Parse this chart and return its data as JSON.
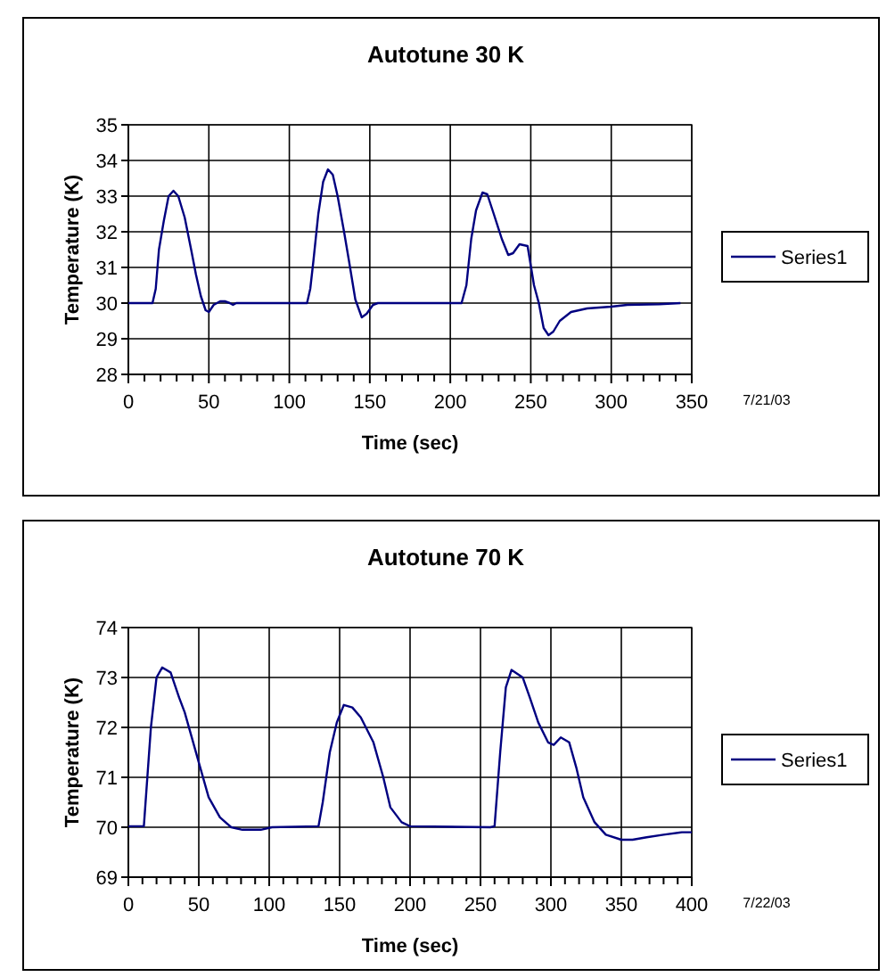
{
  "chart_data": [
    {
      "type": "line",
      "title": "Autotune 30 K",
      "xlabel": "Time (sec)",
      "ylabel": "Temperature (K)",
      "annotations": [
        "7/21/03"
      ],
      "legend": "right",
      "grid": true,
      "line_style": "solid",
      "marker": "none",
      "xlim": [
        0,
        350
      ],
      "ylim": [
        28,
        35
      ],
      "xticks": [
        0,
        {
          "value": 10,
          "label": null
        },
        {
          "value": 20,
          "label": null
        },
        {
          "value": 30,
          "label": null
        },
        {
          "value": 40,
          "label": null
        },
        50,
        {
          "value": 60,
          "label": null
        },
        {
          "value": 70,
          "label": null
        },
        {
          "value": 80,
          "label": null
        },
        {
          "value": 90,
          "label": null
        },
        100,
        {
          "value": 110,
          "label": null
        },
        {
          "value": 120,
          "label": null
        },
        {
          "value": 130,
          "label": null
        },
        {
          "value": 140,
          "label": null
        },
        150,
        {
          "value": 160,
          "label": null
        },
        {
          "value": 170,
          "label": null
        },
        {
          "value": 180,
          "label": null
        },
        {
          "value": 190,
          "label": null
        },
        200,
        {
          "value": 210,
          "label": null
        },
        {
          "value": 220,
          "label": null
        },
        {
          "value": 230,
          "label": null
        },
        {
          "value": 240,
          "label": null
        },
        250,
        {
          "value": 260,
          "label": null
        },
        {
          "value": 270,
          "label": null
        },
        {
          "value": 280,
          "label": null
        },
        {
          "value": 290,
          "label": null
        },
        300,
        {
          "value": 310,
          "label": null
        },
        {
          "value": 320,
          "label": null
        },
        {
          "value": 330,
          "label": null
        },
        {
          "value": 340,
          "label": null
        },
        350
      ],
      "yticks": [
        28,
        29,
        30,
        31,
        32,
        33,
        34,
        35
      ],
      "series": [
        {
          "name": "Series1",
          "color": "#000080",
          "x": [
            0,
            15,
            17,
            19,
            22,
            25,
            28,
            31,
            35,
            39,
            42,
            45,
            48,
            50,
            53,
            57,
            60,
            63,
            65,
            67,
            100,
            111,
            113,
            115,
            118,
            121,
            124,
            127,
            130,
            134,
            137,
            141,
            145,
            148,
            152,
            155,
            207,
            210,
            213,
            216,
            220,
            223,
            227,
            232,
            236,
            239,
            243,
            248,
            252,
            255,
            258,
            261,
            264,
            268,
            275,
            285,
            300,
            310,
            330,
            343
          ],
          "values": [
            30,
            30,
            30.4,
            31.5,
            32.3,
            33,
            33.15,
            33,
            32.4,
            31.5,
            30.8,
            30.2,
            29.8,
            29.75,
            29.95,
            30.05,
            30.05,
            30,
            29.95,
            30,
            30,
            30,
            30.4,
            31.2,
            32.5,
            33.4,
            33.75,
            33.6,
            33,
            32,
            31.2,
            30.1,
            29.6,
            29.7,
            29.95,
            30,
            30,
            30.5,
            31.8,
            32.6,
            33.1,
            33.05,
            32.5,
            31.8,
            31.35,
            31.4,
            31.65,
            31.6,
            30.5,
            30,
            29.3,
            29.1,
            29.2,
            29.5,
            29.75,
            29.85,
            29.9,
            29.95,
            29.97,
            30
          ]
        }
      ]
    },
    {
      "type": "line",
      "title": "Autotune 70 K",
      "xlabel": "Time (sec)",
      "ylabel": "Temperature (K)",
      "annotations": [
        "7/22/03"
      ],
      "legend": "right",
      "grid": true,
      "line_style": "solid",
      "marker": "none",
      "xlim": [
        0,
        400
      ],
      "ylim": [
        69,
        74
      ],
      "xticks": [
        0,
        {
          "value": 10,
          "label": null
        },
        {
          "value": 20,
          "label": null
        },
        {
          "value": 30,
          "label": null
        },
        {
          "value": 40,
          "label": null
        },
        50,
        {
          "value": 60,
          "label": null
        },
        {
          "value": 70,
          "label": null
        },
        {
          "value": 80,
          "label": null
        },
        {
          "value": 90,
          "label": null
        },
        100,
        {
          "value": 110,
          "label": null
        },
        {
          "value": 120,
          "label": null
        },
        {
          "value": 130,
          "label": null
        },
        {
          "value": 140,
          "label": null
        },
        150,
        {
          "value": 160,
          "label": null
        },
        {
          "value": 170,
          "label": null
        },
        {
          "value": 180,
          "label": null
        },
        {
          "value": 190,
          "label": null
        },
        200,
        {
          "value": 210,
          "label": null
        },
        {
          "value": 220,
          "label": null
        },
        {
          "value": 230,
          "label": null
        },
        {
          "value": 240,
          "label": null
        },
        250,
        {
          "value": 260,
          "label": null
        },
        {
          "value": 270,
          "label": null
        },
        {
          "value": 280,
          "label": null
        },
        {
          "value": 290,
          "label": null
        },
        300,
        {
          "value": 310,
          "label": null
        },
        {
          "value": 320,
          "label": null
        },
        {
          "value": 330,
          "label": null
        },
        {
          "value": 340,
          "label": null
        },
        350,
        {
          "value": 360,
          "label": null
        },
        {
          "value": 370,
          "label": null
        },
        {
          "value": 380,
          "label": null
        },
        {
          "value": 390,
          "label": null
        },
        400
      ],
      "yticks": [
        69,
        70,
        71,
        72,
        73,
        74
      ],
      "series": [
        {
          "name": "Series1",
          "color": "#000080",
          "x": [
            0,
            11,
            16,
            20,
            24,
            30,
            36,
            40,
            45,
            51,
            57,
            65,
            73,
            81,
            94,
            102,
            135,
            138,
            143,
            148,
            153,
            159,
            165,
            174,
            181,
            186,
            194,
            200,
            257,
            260,
            264,
            268,
            272,
            280,
            285,
            291,
            298,
            302,
            307,
            313,
            318,
            323,
            331,
            339,
            350,
            358,
            368,
            380,
            393,
            400
          ],
          "values": [
            70.02,
            70.02,
            72,
            73,
            73.2,
            73.1,
            72.6,
            72.3,
            71.8,
            71.2,
            70.6,
            70.2,
            70,
            69.95,
            69.95,
            70,
            70.02,
            70.5,
            71.5,
            72.1,
            72.45,
            72.4,
            72.2,
            71.7,
            71,
            70.4,
            70.1,
            70.02,
            70,
            70.02,
            71.5,
            72.8,
            73.15,
            73,
            72.6,
            72.1,
            71.7,
            71.65,
            71.8,
            71.7,
            71.2,
            70.6,
            70.1,
            69.85,
            69.75,
            69.75,
            69.8,
            69.85,
            69.9,
            69.9
          ]
        }
      ]
    }
  ]
}
